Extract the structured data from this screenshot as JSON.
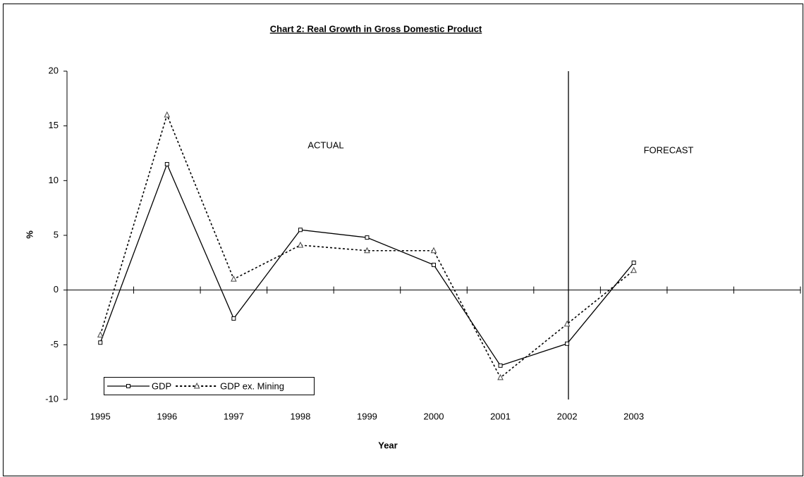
{
  "chart_data": {
    "type": "line",
    "title": "Chart 2: Real Growth in Gross Domestic Product",
    "x_label": "Year",
    "y_label": "%",
    "categories": [
      "1995",
      "1996",
      "1997",
      "1998",
      "1999",
      "2000",
      "2001",
      "2002",
      "2003",
      null,
      null
    ],
    "series": [
      {
        "name": "GDP",
        "color": "#000000",
        "style": "solid",
        "marker": "square",
        "values": [
          -4.8,
          11.5,
          -2.6,
          5.5,
          4.8,
          2.3,
          -6.9,
          -4.9,
          2.5,
          null,
          null
        ]
      },
      {
        "name": "GDP ex. Mining",
        "color": "#000000",
        "style": "dotted",
        "marker": "triangle",
        "values": [
          -4.1,
          16,
          1.0,
          4.1,
          3.6,
          3.6,
          -8.0,
          -3.1,
          1.8,
          null,
          null
        ]
      }
    ],
    "ylim": [
      -10,
      20
    ],
    "yticks": [
      -10,
      -5,
      0,
      5,
      10,
      15,
      20
    ],
    "annotations": [
      "ACTUAL",
      "FORECAST"
    ],
    "grid": false,
    "legend": "lower left"
  }
}
